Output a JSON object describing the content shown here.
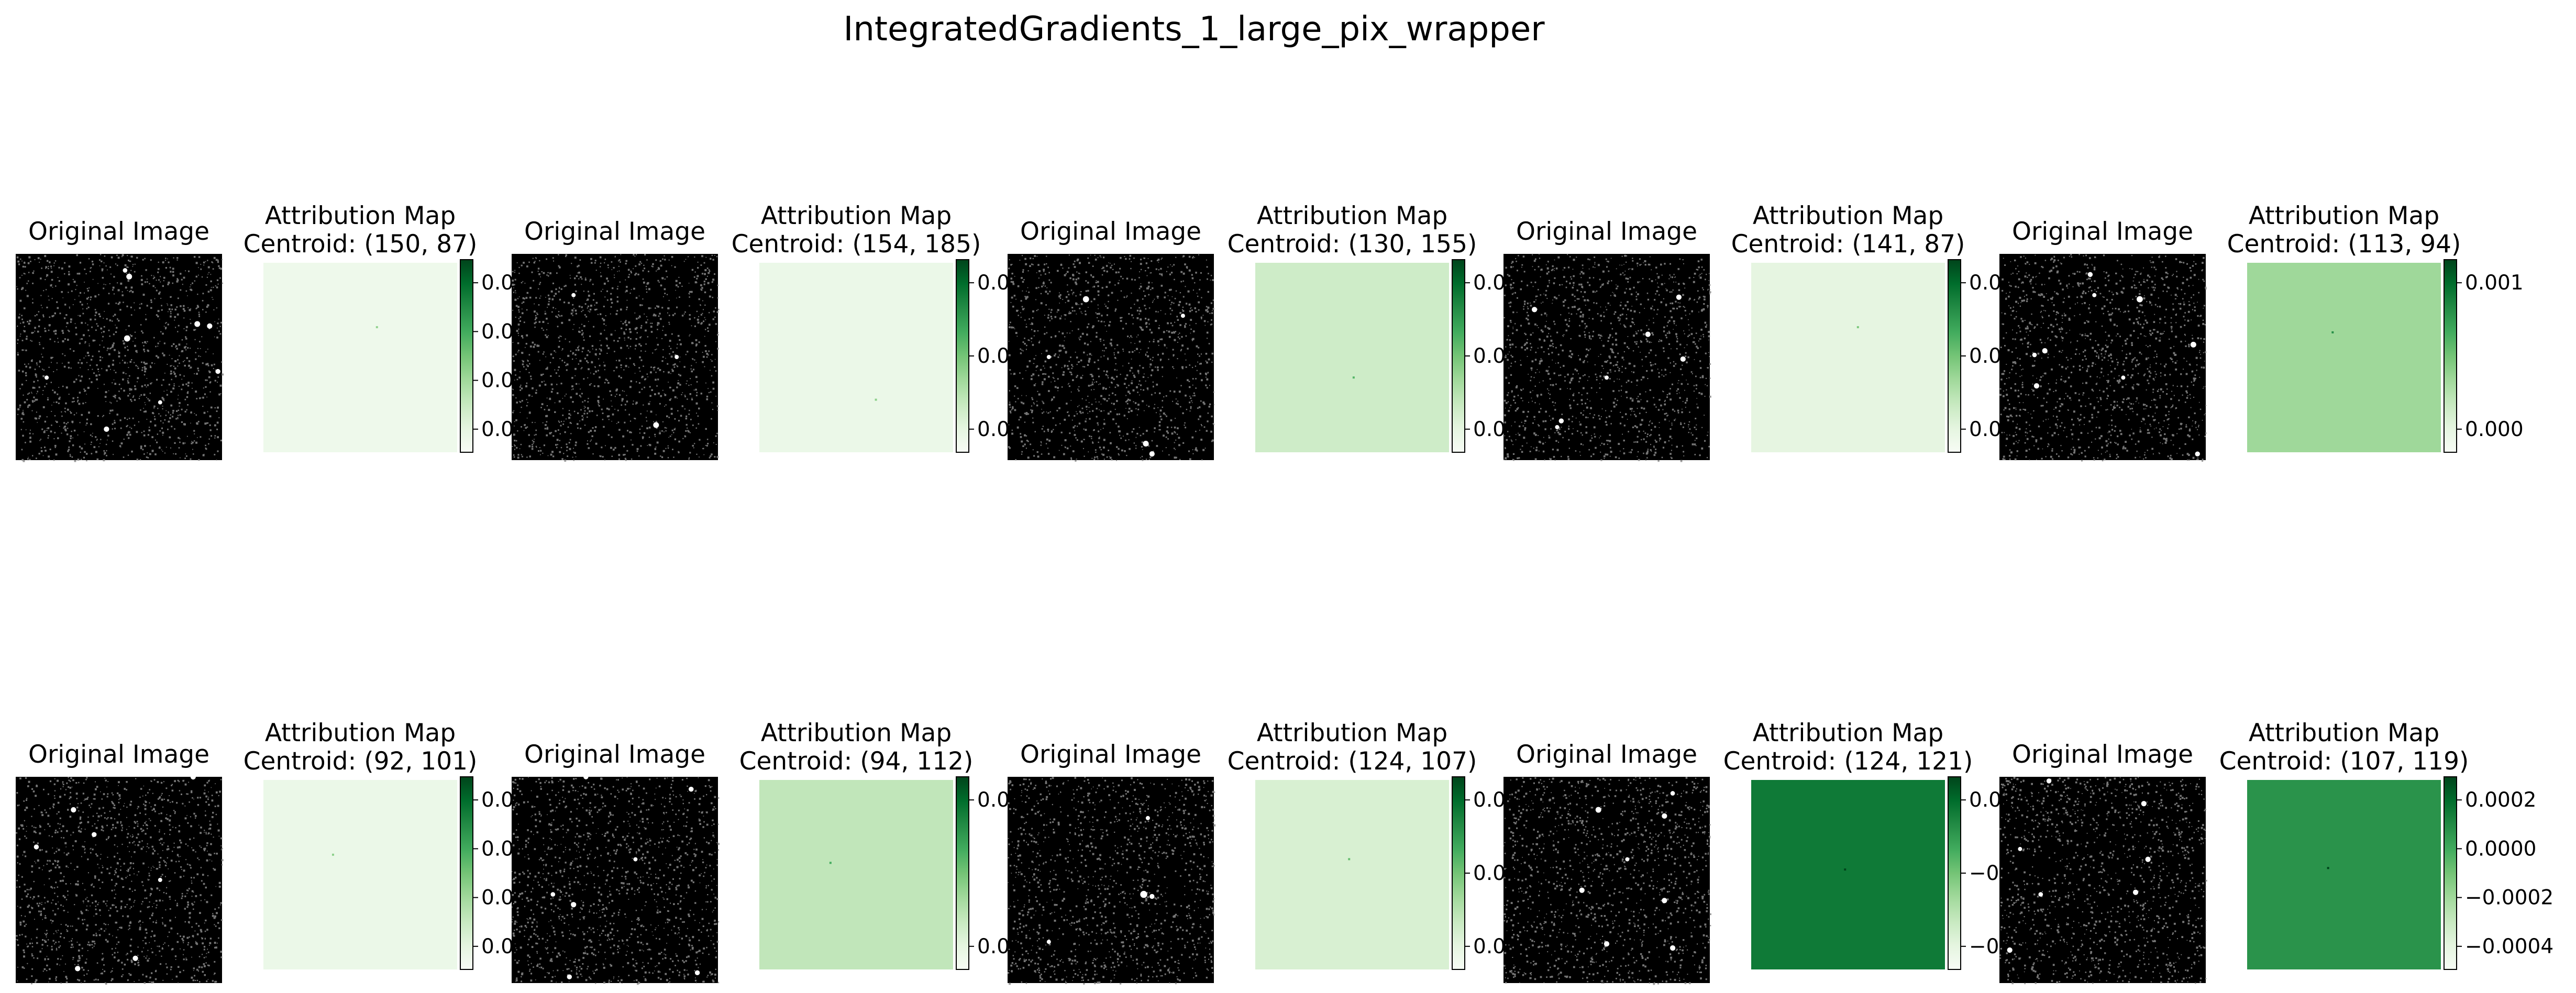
{
  "figure": {
    "title": "IntegratedGradients_1_large_pix_wrapper"
  },
  "chart_data": {
    "type": "heatmap",
    "title": "IntegratedGradients_1_large_pix_wrapper",
    "colormap": "Greens",
    "grid": false,
    "axes": "off",
    "pairs": [
      {
        "original_title": "Original Image",
        "attribution_title": [
          "Attribution Map",
          "Centroid: (150, 87)"
        ],
        "centroid": [
          150,
          87
        ],
        "background_level": 0.06,
        "colorbar_ticks": [
          "0.0",
          "0.0",
          "0.0",
          "0.0"
        ],
        "stars": [
          [
            0.55,
            0.11,
            0.028
          ],
          [
            0.53,
            0.08,
            0.022
          ],
          [
            0.54,
            0.41,
            0.03
          ],
          [
            0.88,
            0.34,
            0.028
          ],
          [
            0.94,
            0.35,
            0.026
          ],
          [
            0.98,
            0.57,
            0.024
          ],
          [
            0.44,
            0.85,
            0.026
          ],
          [
            0.15,
            0.6,
            0.012
          ],
          [
            0.7,
            0.72,
            0.012
          ]
        ]
      },
      {
        "original_title": "Original Image",
        "attribution_title": [
          "Attribution Map",
          "Centroid: (154, 185)"
        ],
        "centroid": [
          154,
          185
        ],
        "background_level": 0.08,
        "colorbar_ticks": [
          "0.0",
          "0.0",
          "0.0"
        ],
        "stars": [
          [
            0.7,
            0.83,
            0.028
          ],
          [
            0.3,
            0.2,
            0.012
          ],
          [
            0.8,
            0.5,
            0.012
          ]
        ]
      },
      {
        "original_title": "Original Image",
        "attribution_title": [
          "Attribution Map",
          "Centroid: (130, 155)"
        ],
        "centroid": [
          130,
          155
        ],
        "background_level": 0.22,
        "colorbar_ticks": [
          "0.0",
          "0.0",
          "0.0"
        ],
        "stars": [
          [
            0.38,
            0.22,
            0.03
          ],
          [
            0.67,
            0.92,
            0.028
          ],
          [
            0.7,
            0.97,
            0.026
          ],
          [
            0.2,
            0.5,
            0.012
          ],
          [
            0.85,
            0.3,
            0.012
          ]
        ]
      },
      {
        "original_title": "Original Image",
        "attribution_title": [
          "Attribution Map",
          "Centroid: (141, 87)"
        ],
        "centroid": [
          141,
          87
        ],
        "background_level": 0.12,
        "colorbar_ticks": [
          "0.0",
          "0.0",
          "0.0"
        ],
        "stars": [
          [
            0.15,
            0.27,
            0.026
          ],
          [
            0.85,
            0.21,
            0.026
          ],
          [
            0.7,
            0.39,
            0.026
          ],
          [
            0.87,
            0.51,
            0.026
          ],
          [
            0.28,
            0.81,
            0.024
          ],
          [
            0.26,
            0.84,
            0.02
          ],
          [
            0.5,
            0.6,
            0.012
          ]
        ]
      },
      {
        "original_title": "Original Image",
        "attribution_title": [
          "Attribution Map",
          "Centroid: (113, 94)"
        ],
        "centroid": [
          113,
          94
        ],
        "background_level": 0.38,
        "colorbar_ticks": [
          "0.001",
          "0.000"
        ],
        "stars": [
          [
            0.44,
            0.1,
            0.024
          ],
          [
            0.68,
            0.22,
            0.03
          ],
          [
            0.46,
            0.2,
            0.02
          ],
          [
            0.94,
            0.44,
            0.028
          ],
          [
            0.22,
            0.47,
            0.026
          ],
          [
            0.17,
            0.49,
            0.022
          ],
          [
            0.18,
            0.64,
            0.026
          ],
          [
            0.96,
            0.97,
            0.024
          ],
          [
            0.6,
            0.6,
            0.012
          ]
        ]
      },
      {
        "original_title": "Original Image",
        "attribution_title": [
          "Attribution Map",
          "Centroid: (92, 101)"
        ],
        "centroid": [
          92,
          101
        ],
        "background_level": 0.08,
        "colorbar_ticks": [
          "0.0",
          "0.0",
          "0.0",
          "0.0"
        ],
        "stars": [
          [
            0.86,
            0.0,
            0.026
          ],
          [
            0.28,
            0.16,
            0.026
          ],
          [
            0.38,
            0.28,
            0.024
          ],
          [
            0.1,
            0.34,
            0.024
          ],
          [
            0.58,
            0.88,
            0.026
          ],
          [
            0.3,
            0.93,
            0.026
          ],
          [
            0.7,
            0.5,
            0.012
          ]
        ]
      },
      {
        "original_title": "Original Image",
        "attribution_title": [
          "Attribution Map",
          "Centroid: (94, 112)"
        ],
        "centroid": [
          94,
          112
        ],
        "background_level": 0.27,
        "colorbar_ticks": [
          "0.0",
          "0.0"
        ],
        "stars": [
          [
            0.36,
            0.0,
            0.024
          ],
          [
            0.87,
            0.06,
            0.024
          ],
          [
            0.2,
            0.57,
            0.022
          ],
          [
            0.3,
            0.62,
            0.026
          ],
          [
            0.28,
            0.97,
            0.024
          ],
          [
            0.9,
            0.95,
            0.024
          ],
          [
            0.6,
            0.4,
            0.012
          ]
        ]
      },
      {
        "original_title": "Original Image",
        "attribution_title": [
          "Attribution Map",
          "Centroid: (124, 107)"
        ],
        "centroid": [
          124,
          107
        ],
        "background_level": 0.18,
        "colorbar_ticks": [
          "0.0",
          "0.0",
          "0.0"
        ],
        "stars": [
          [
            0.66,
            0.57,
            0.034
          ],
          [
            0.7,
            0.58,
            0.024
          ],
          [
            0.68,
            0.2,
            0.012
          ],
          [
            0.2,
            0.8,
            0.012
          ]
        ]
      },
      {
        "original_title": "Original Image",
        "attribution_title": [
          "Attribution Map",
          "Centroid: (124, 121)"
        ],
        "centroid": [
          124,
          121
        ],
        "background_level": 0.82,
        "colorbar_ticks": [
          "0.0",
          "−0",
          "−0"
        ],
        "stars": [
          [
            0.46,
            0.16,
            0.028
          ],
          [
            0.82,
            0.08,
            0.022
          ],
          [
            0.78,
            0.19,
            0.026
          ],
          [
            0.38,
            0.55,
            0.026
          ],
          [
            0.78,
            0.6,
            0.026
          ],
          [
            0.5,
            0.81,
            0.026
          ],
          [
            0.82,
            0.83,
            0.026
          ],
          [
            0.6,
            0.4,
            0.012
          ]
        ]
      },
      {
        "original_title": "Original Image",
        "attribution_title": [
          "Attribution Map",
          "Centroid: (107, 119)"
        ],
        "centroid": [
          107,
          119
        ],
        "background_level": 0.72,
        "colorbar_ticks": [
          "0.0002",
          "0.0000",
          "−0.0002",
          "−0.0004"
        ],
        "stars": [
          [
            0.24,
            0.02,
            0.024
          ],
          [
            0.7,
            0.13,
            0.026
          ],
          [
            0.72,
            0.4,
            0.026
          ],
          [
            0.66,
            0.56,
            0.026
          ],
          [
            0.2,
            0.57,
            0.022
          ],
          [
            0.05,
            0.84,
            0.026
          ],
          [
            0.1,
            0.35,
            0.012
          ]
        ]
      }
    ]
  }
}
